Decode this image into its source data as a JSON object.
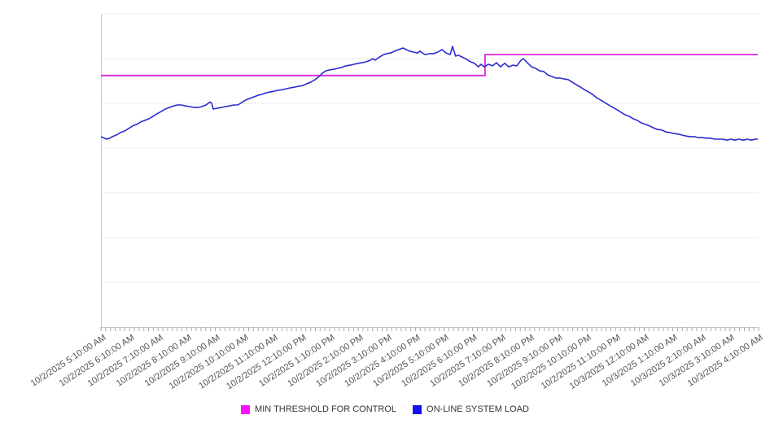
{
  "legend": {
    "items": [
      {
        "label": "MIN THRESHOLD FOR CONTROL",
        "color": "#FA14FA"
      },
      {
        "label": "ON-LINE SYSTEM LOAD",
        "color": "#1212EE"
      }
    ]
  },
  "axis": {
    "x_labels": [
      "10/2/2025 5:10:00 AM",
      "10/2/2025 6:10:00 AM",
      "10/2/2025 7:10:00 AM",
      "10/2/2025 8:10:00 AM",
      "10/2/2025 9:10:00 AM",
      "10/2/2025 10:10:00 AM",
      "10/2/2025 11:10:00 AM",
      "10/2/2025 12:10:00 PM",
      "10/2/2025 1:10:00 PM",
      "10/2/2025 2:10:00 PM",
      "10/2/2025 3:10:00 PM",
      "10/2/2025 4:10:00 PM",
      "10/2/2025 5:10:00 PM",
      "10/2/2025 6:10:00 PM",
      "10/2/2025 7:10:00 PM",
      "10/2/2025 8:10:00 PM",
      "10/2/2025 9:10:00 PM",
      "10/2/2025 10:10:00 PM",
      "10/2/2025 11:10:00 PM",
      "10/3/2025 12:10:00 AM",
      "10/3/2025 1:10:00 AM",
      "10/3/2025 2:10:00 AM",
      "10/3/2025 3:10:00 AM",
      "10/3/2025 4:10:00 AM"
    ],
    "minor_ticks_per_hour": 6,
    "grid_color": "#ECECEC",
    "axis_color": "#C9C9C9",
    "tick_color": "#A8A8A8",
    "label_color": "#545454"
  },
  "chart_data": {
    "type": "line",
    "title": "",
    "xlabel": "",
    "ylabel": "",
    "x_range_hours": [
      0,
      23
    ],
    "x_start": "10/2/2025 5:10:00 AM",
    "x_end": "10/3/2025 4:10:00 AM",
    "ylim": [
      0,
      100
    ],
    "y_axis_labels_visible": false,
    "grid": "horizontal",
    "gridline_values": [
      100,
      85.7,
      71.4,
      57.1,
      42.9,
      28.6,
      14.3
    ],
    "legend_position": "bottom",
    "series": [
      {
        "name": "MIN THRESHOLD FOR CONTROL",
        "color": "#DC25DC",
        "width": 1.8,
        "points": [
          [
            0,
            80.3
          ],
          [
            13.45,
            80.3
          ],
          [
            13.45,
            87.0
          ],
          [
            23,
            87.0
          ]
        ]
      },
      {
        "name": "ON-LINE SYSTEM LOAD",
        "color": "#2B2BCF",
        "width": 1.6,
        "points": [
          [
            0,
            60.8
          ],
          [
            0.11,
            60.3
          ],
          [
            0.2,
            60
          ],
          [
            0.31,
            60.3
          ],
          [
            0.4,
            60.8
          ],
          [
            0.54,
            61.3
          ],
          [
            0.68,
            62.1
          ],
          [
            0.83,
            62.6
          ],
          [
            0.97,
            63.4
          ],
          [
            1.11,
            64.2
          ],
          [
            1.25,
            64.7
          ],
          [
            1.4,
            65.5
          ],
          [
            1.54,
            66
          ],
          [
            1.68,
            66.5
          ],
          [
            1.82,
            67.3
          ],
          [
            1.97,
            68.1
          ],
          [
            2.11,
            68.8
          ],
          [
            2.25,
            69.6
          ],
          [
            2.39,
            70.1
          ],
          [
            2.54,
            70.6
          ],
          [
            2.68,
            70.9
          ],
          [
            2.82,
            70.9
          ],
          [
            2.96,
            70.6
          ],
          [
            3.11,
            70.4
          ],
          [
            3.25,
            70.1
          ],
          [
            3.39,
            70.1
          ],
          [
            3.53,
            70.4
          ],
          [
            3.68,
            70.9
          ],
          [
            3.82,
            71.9
          ],
          [
            3.88,
            71.4
          ],
          [
            3.93,
            69.6
          ],
          [
            4.08,
            69.9
          ],
          [
            4.22,
            70.1
          ],
          [
            4.36,
            70.4
          ],
          [
            4.5,
            70.6
          ],
          [
            4.65,
            70.9
          ],
          [
            4.79,
            70.9
          ],
          [
            4.93,
            71.7
          ],
          [
            5.07,
            72.5
          ],
          [
            5.22,
            73
          ],
          [
            5.36,
            73.5
          ],
          [
            5.5,
            74
          ],
          [
            5.64,
            74.3
          ],
          [
            5.79,
            74.8
          ],
          [
            5.93,
            75.1
          ],
          [
            6.07,
            75.3
          ],
          [
            6.21,
            75.6
          ],
          [
            6.36,
            75.8
          ],
          [
            6.5,
            76.1
          ],
          [
            6.64,
            76.4
          ],
          [
            6.78,
            76.6
          ],
          [
            6.93,
            76.9
          ],
          [
            7.07,
            77.1
          ],
          [
            7.21,
            77.7
          ],
          [
            7.35,
            78.2
          ],
          [
            7.5,
            79
          ],
          [
            7.64,
            80
          ],
          [
            7.75,
            81
          ],
          [
            7.87,
            81.8
          ],
          [
            8.01,
            82.1
          ],
          [
            8.15,
            82.3
          ],
          [
            8.29,
            82.6
          ],
          [
            8.44,
            82.9
          ],
          [
            8.58,
            83.4
          ],
          [
            8.72,
            83.6
          ],
          [
            8.86,
            83.9
          ],
          [
            9.01,
            84.2
          ],
          [
            9.15,
            84.4
          ],
          [
            9.29,
            84.7
          ],
          [
            9.43,
            85.2
          ],
          [
            9.52,
            85.7
          ],
          [
            9.6,
            85.2
          ],
          [
            9.72,
            86
          ],
          [
            9.86,
            86.8
          ],
          [
            10,
            87.3
          ],
          [
            10.15,
            87.5
          ],
          [
            10.29,
            88.1
          ],
          [
            10.43,
            88.6
          ],
          [
            10.57,
            89.1
          ],
          [
            10.69,
            88.6
          ],
          [
            10.8,
            88.1
          ],
          [
            10.94,
            87.8
          ],
          [
            11.09,
            87.5
          ],
          [
            11.17,
            88.1
          ],
          [
            11.29,
            87.3
          ],
          [
            11.37,
            87
          ],
          [
            11.51,
            87.3
          ],
          [
            11.66,
            87.3
          ],
          [
            11.8,
            87.8
          ],
          [
            11.94,
            88.6
          ],
          [
            12.08,
            87.5
          ],
          [
            12.23,
            87
          ],
          [
            12.31,
            89.6
          ],
          [
            12.42,
            86.5
          ],
          [
            12.51,
            86.8
          ],
          [
            12.65,
            86.2
          ],
          [
            12.8,
            85.5
          ],
          [
            12.94,
            84.7
          ],
          [
            13.08,
            84.2
          ],
          [
            13.22,
            83.1
          ],
          [
            13.31,
            83.9
          ],
          [
            13.42,
            83.1
          ],
          [
            13.57,
            83.9
          ],
          [
            13.71,
            83.4
          ],
          [
            13.85,
            84.4
          ],
          [
            13.99,
            83.1
          ],
          [
            14.14,
            84.2
          ],
          [
            14.28,
            83.1
          ],
          [
            14.42,
            83.6
          ],
          [
            14.56,
            83.4
          ],
          [
            14.71,
            85.2
          ],
          [
            14.79,
            85.7
          ],
          [
            14.93,
            84.4
          ],
          [
            15.08,
            83.1
          ],
          [
            15.22,
            82.6
          ],
          [
            15.36,
            81.8
          ],
          [
            15.5,
            81.6
          ],
          [
            15.65,
            80.5
          ],
          [
            15.79,
            80
          ],
          [
            15.93,
            79.5
          ],
          [
            16.07,
            79.5
          ],
          [
            16.22,
            79.2
          ],
          [
            16.36,
            79
          ],
          [
            16.5,
            78.2
          ],
          [
            16.64,
            77.4
          ],
          [
            16.79,
            76.6
          ],
          [
            16.93,
            75.8
          ],
          [
            17.07,
            75.1
          ],
          [
            17.21,
            74.3
          ],
          [
            17.36,
            73.2
          ],
          [
            17.5,
            72.5
          ],
          [
            17.64,
            71.7
          ],
          [
            17.78,
            70.9
          ],
          [
            17.93,
            70.1
          ],
          [
            18.07,
            69.4
          ],
          [
            18.21,
            68.6
          ],
          [
            18.35,
            67.8
          ],
          [
            18.5,
            67.3
          ],
          [
            18.64,
            66.5
          ],
          [
            18.78,
            66
          ],
          [
            18.92,
            65.2
          ],
          [
            19.07,
            64.7
          ],
          [
            19.21,
            64.2
          ],
          [
            19.35,
            63.6
          ],
          [
            19.49,
            63.1
          ],
          [
            19.64,
            62.9
          ],
          [
            19.78,
            62.3
          ],
          [
            19.92,
            62.1
          ],
          [
            20.06,
            61.8
          ],
          [
            20.21,
            61.6
          ],
          [
            20.35,
            61.3
          ],
          [
            20.49,
            61
          ],
          [
            20.63,
            60.8
          ],
          [
            20.78,
            60.8
          ],
          [
            20.92,
            60.5
          ],
          [
            21.06,
            60.5
          ],
          [
            21.2,
            60.3
          ],
          [
            21.35,
            60.3
          ],
          [
            21.49,
            60
          ],
          [
            21.63,
            60
          ],
          [
            21.77,
            60
          ],
          [
            21.92,
            59.7
          ],
          [
            22.06,
            60
          ],
          [
            22.2,
            59.7
          ],
          [
            22.34,
            60
          ],
          [
            22.49,
            59.7
          ],
          [
            22.63,
            60
          ],
          [
            22.77,
            59.7
          ],
          [
            22.91,
            60
          ],
          [
            23,
            60
          ]
        ]
      }
    ]
  }
}
